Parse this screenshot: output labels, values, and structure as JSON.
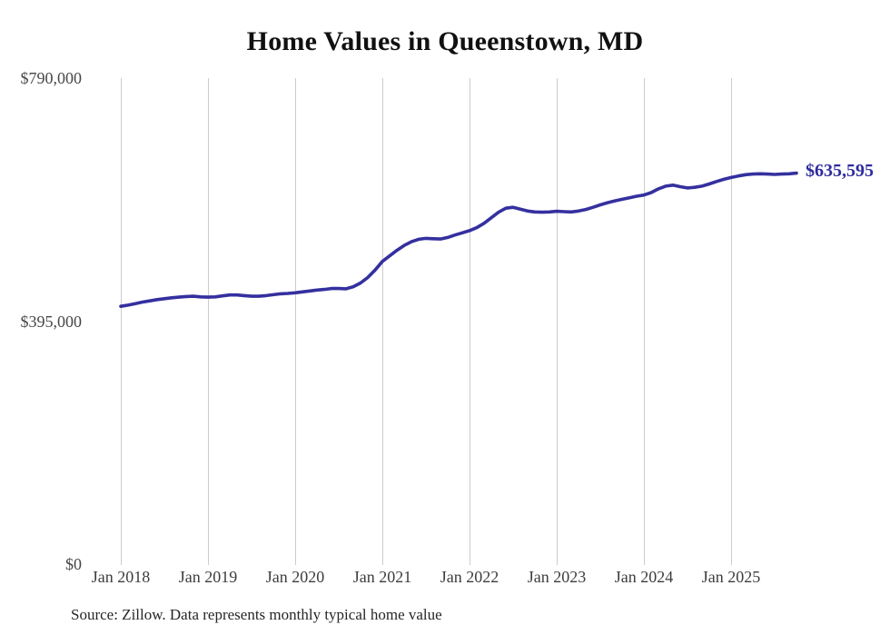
{
  "source_note": "Source: Zillow. Data represents monthly typical home value",
  "colors": {
    "line": "#34309f",
    "latest_label": "#2e2b9e",
    "gridline": "#cccccc",
    "title_text": "#111111",
    "axis_text": "#434343",
    "source_text": "#262626"
  },
  "chart_data": {
    "type": "line",
    "title": "Home Values in Queenstown, MD",
    "xlabel": "",
    "ylabel": "",
    "ylim": [
      0,
      790000
    ],
    "grid": "vertical-only",
    "legend": "none",
    "y_ticks": [
      {
        "label": "$790,000",
        "value": 790000
      },
      {
        "label": "$395,000",
        "value": 395000
      },
      {
        "label": "$0",
        "value": 0
      }
    ],
    "x_ticks": [
      {
        "label": "Jan 2018",
        "month_index": 0
      },
      {
        "label": "Jan 2019",
        "month_index": 12
      },
      {
        "label": "Jan 2020",
        "month_index": 24
      },
      {
        "label": "Jan 2021",
        "month_index": 36
      },
      {
        "label": "Jan 2022",
        "month_index": 48
      },
      {
        "label": "Jan 2023",
        "month_index": 60
      },
      {
        "label": "Jan 2024",
        "month_index": 72
      },
      {
        "label": "Jan 2025",
        "month_index": 84
      }
    ],
    "series": [
      {
        "name": "Typical home value",
        "unit": "USD",
        "frequency": "monthly",
        "start": "Jan 2018",
        "end": "Oct 2025",
        "latest_value": 635595,
        "latest_value_label": "$635,595",
        "values": [
          419000,
          421000,
          423500,
          426000,
          428000,
          430000,
          431500,
          433000,
          434000,
          435000,
          435500,
          434500,
          434000,
          434500,
          436000,
          437500,
          437500,
          436500,
          435500,
          435500,
          436500,
          438000,
          439500,
          440000,
          441000,
          442500,
          444000,
          445500,
          446500,
          448000,
          448000,
          447500,
          451000,
          457000,
          466000,
          478000,
          492000,
          501000,
          510000,
          518000,
          524000,
          528000,
          529500,
          529000,
          528500,
          531000,
          535000,
          538500,
          542000,
          547000,
          554000,
          563000,
          572000,
          578500,
          580000,
          577000,
          574000,
          572500,
          572000,
          572500,
          573500,
          573000,
          572500,
          574000,
          576500,
          580000,
          584000,
          587500,
          590500,
          593000,
          595500,
          598000,
          600000,
          604000,
          610000,
          614500,
          616000,
          613500,
          611500,
          612500,
          614500,
          618000,
          622000,
          625500,
          628500,
          631000,
          633000,
          634000,
          634500,
          634000,
          633500,
          634000,
          634500,
          635595
        ]
      }
    ]
  }
}
